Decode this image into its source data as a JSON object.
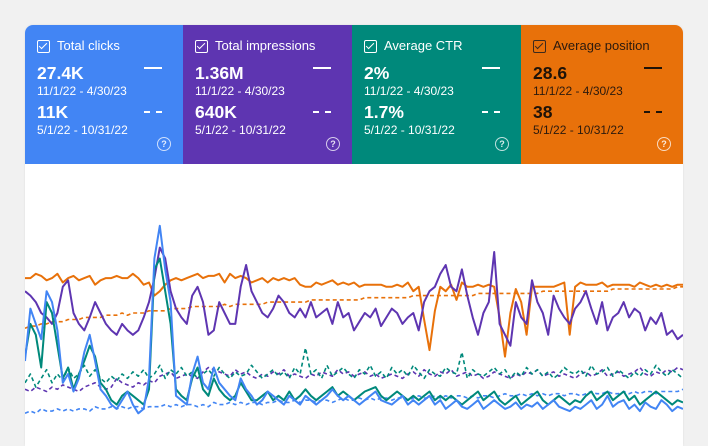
{
  "metrics": [
    {
      "id": "clicks",
      "title": "Total clicks",
      "color": "#4285f4",
      "current_value": "27.4K",
      "current_range": "11/1/22 - 4/30/23",
      "previous_value": "11K",
      "previous_range": "5/1/22 - 10/31/22",
      "checked": true
    },
    {
      "id": "impressions",
      "title": "Total impressions",
      "color": "#5e35b1",
      "current_value": "1.36M",
      "current_range": "11/1/22 - 4/30/23",
      "previous_value": "640K",
      "previous_range": "5/1/22 - 10/31/22",
      "checked": true
    },
    {
      "id": "ctr",
      "title": "Average CTR",
      "color": "#00897b",
      "current_value": "2%",
      "current_range": "11/1/22 - 4/30/23",
      "previous_value": "1.7%",
      "previous_range": "5/1/22 - 10/31/22",
      "checked": true
    },
    {
      "id": "position",
      "title": "Average position",
      "color": "#e8710a",
      "current_value": "28.6",
      "current_range": "11/1/22 - 4/30/23",
      "previous_value": "38",
      "previous_range": "5/1/22 - 10/31/22",
      "checked": true
    }
  ],
  "help_icon": "help-circle-icon",
  "chart_data": {
    "type": "line",
    "title": "",
    "xlabel": "",
    "ylabel": "",
    "grid": false,
    "legend": "none",
    "ylim": [
      0,
      100
    ],
    "series": [
      {
        "id": "position-current",
        "color": "#e8710a",
        "style": "solid",
        "values": [
          66,
          66,
          68,
          67,
          65,
          66,
          68,
          64,
          66,
          67,
          65,
          66,
          67,
          63,
          65,
          66,
          66,
          67,
          66,
          66,
          68,
          66,
          63,
          64,
          58,
          60,
          63,
          65,
          66,
          65,
          66,
          67,
          68,
          66,
          67,
          67,
          68,
          64,
          68,
          66,
          67,
          66,
          64,
          65,
          66,
          64,
          66,
          65,
          66,
          65,
          66,
          63,
          62,
          62,
          64,
          63,
          64,
          65,
          63,
          64,
          63,
          64,
          62,
          63,
          63,
          63,
          63,
          62,
          62,
          63,
          62,
          64,
          60,
          62,
          47,
          33,
          51,
          62,
          60,
          63,
          56,
          64,
          62,
          62,
          63,
          62,
          63,
          62,
          48,
          30,
          50,
          61,
          55,
          40,
          62,
          62,
          62,
          62,
          62,
          63,
          64,
          40,
          62,
          64,
          63,
          63,
          63,
          64,
          62,
          63,
          63,
          63,
          63,
          62,
          64,
          63,
          62,
          63,
          62,
          63,
          62,
          63,
          63
        ]
      },
      {
        "id": "position-previous",
        "color": "#e8710a",
        "style": "dashed",
        "values": [
          43,
          44,
          44,
          45,
          45,
          46,
          46,
          46,
          47,
          47,
          47,
          48,
          48,
          48,
          48,
          49,
          49,
          49,
          50,
          49,
          50,
          50,
          50,
          51,
          51,
          51,
          51,
          52,
          52,
          52,
          52,
          53,
          53,
          53,
          53,
          53,
          53,
          54,
          53,
          54,
          54,
          54,
          54,
          54,
          54,
          55,
          55,
          55,
          55,
          55,
          55,
          55,
          55,
          56,
          56,
          56,
          56,
          56,
          56,
          56,
          56,
          56,
          56,
          57,
          57,
          57,
          57,
          57,
          57,
          57,
          57,
          57,
          58,
          58,
          58,
          58,
          58,
          58,
          58,
          58,
          58,
          58,
          58,
          58,
          59,
          59,
          59,
          59,
          59,
          59,
          59,
          59,
          59,
          59,
          59,
          59,
          60,
          60,
          60,
          60,
          60,
          60,
          60,
          60,
          60,
          60,
          60,
          60,
          60,
          61,
          61,
          61,
          61,
          61,
          61,
          61,
          61,
          61,
          61,
          61,
          61,
          62,
          62
        ]
      },
      {
        "id": "impressions-current",
        "color": "#5e35b1",
        "style": "solid",
        "values": [
          60,
          58,
          55,
          50,
          48,
          45,
          50,
          62,
          65,
          50,
          45,
          42,
          48,
          55,
          50,
          45,
          42,
          40,
          45,
          42,
          40,
          42,
          48,
          55,
          66,
          80,
          75,
          60,
          52,
          48,
          45,
          58,
          62,
          55,
          40,
          42,
          55,
          50,
          45,
          45,
          62,
          72,
          60,
          55,
          50,
          48,
          52,
          58,
          55,
          50,
          48,
          52,
          48,
          55,
          48,
          50,
          52,
          45,
          55,
          48,
          50,
          42,
          46,
          50,
          48,
          52,
          44,
          48,
          52,
          50,
          45,
          48,
          50,
          42,
          55,
          60,
          62,
          68,
          72,
          62,
          60,
          70,
          58,
          48,
          40,
          50,
          55,
          78,
          45,
          40,
          35,
          55,
          48,
          45,
          65,
          55,
          50,
          40,
          58,
          52,
          48,
          45,
          52,
          55,
          60,
          52,
          45,
          55,
          42,
          48,
          50,
          55,
          48,
          52,
          50,
          42,
          48,
          45,
          50,
          40,
          42,
          38,
          40
        ]
      },
      {
        "id": "impressions-previous",
        "color": "#5e35b1",
        "style": "dashed",
        "values": [
          15,
          14,
          16,
          15,
          14,
          16,
          15,
          17,
          16,
          15,
          14,
          16,
          17,
          18,
          16,
          15,
          16,
          20,
          18,
          17,
          16,
          18,
          17,
          19,
          18,
          21,
          22,
          23,
          20,
          21,
          22,
          21,
          20,
          23,
          25,
          24,
          23,
          22,
          21,
          24,
          22,
          23,
          21,
          20,
          22,
          21,
          23,
          22,
          24,
          21,
          22,
          21,
          20,
          22,
          21,
          23,
          22,
          21,
          24,
          22,
          23,
          21,
          22,
          23,
          21,
          22,
          20,
          21,
          22,
          21,
          20,
          22,
          23,
          21,
          24,
          22,
          21,
          23,
          22,
          24,
          21,
          22,
          23,
          21,
          22,
          20,
          21,
          23,
          22,
          21,
          20,
          22,
          21,
          23,
          22,
          24,
          21,
          22,
          23,
          21,
          22,
          21,
          20,
          22,
          23,
          21,
          22,
          24,
          21,
          22,
          23,
          21,
          22,
          23,
          25,
          22,
          21,
          23,
          22,
          24,
          23,
          25,
          24
        ]
      },
      {
        "id": "clicks-current",
        "color": "#4285f4",
        "style": "solid",
        "values": [
          28,
          52,
          45,
          38,
          60,
          55,
          42,
          18,
          22,
          14,
          20,
          32,
          40,
          28,
          15,
          12,
          8,
          6,
          10,
          14,
          8,
          4,
          6,
          20,
          75,
          90,
          70,
          55,
          12,
          10,
          8,
          22,
          30,
          18,
          15,
          25,
          18,
          15,
          12,
          10,
          20,
          15,
          12,
          8,
          10,
          14,
          12,
          10,
          8,
          12,
          10,
          8,
          12,
          10,
          8,
          10,
          12,
          15,
          12,
          10,
          12,
          10,
          8,
          10,
          12,
          14,
          10,
          9,
          8,
          10,
          12,
          8,
          10,
          8,
          10,
          12,
          8,
          10,
          6,
          8,
          10,
          7,
          6,
          8,
          10,
          6,
          8,
          10,
          8,
          6,
          7,
          9,
          6,
          8,
          7,
          9,
          6,
          8,
          10,
          7,
          6,
          5,
          7,
          6,
          8,
          10,
          6,
          8,
          12,
          7,
          9,
          10,
          6,
          8,
          5,
          9,
          7,
          6,
          10,
          8,
          5,
          7,
          6
        ]
      },
      {
        "id": "clicks-previous",
        "color": "#4285f4",
        "style": "dashed",
        "values": [
          4,
          5,
          4,
          6,
          5,
          5,
          6,
          5,
          6,
          5,
          6,
          6,
          5,
          7,
          6,
          6,
          7,
          6,
          7,
          6,
          7,
          7,
          6,
          7,
          7,
          7,
          8,
          7,
          8,
          7,
          8,
          8,
          7,
          8,
          7,
          9,
          8,
          8,
          9,
          8,
          9,
          8,
          9,
          9,
          8,
          9,
          9,
          10,
          9,
          9,
          10,
          9,
          10,
          10,
          9,
          10,
          10,
          9,
          10,
          11,
          10,
          10,
          11,
          10,
          11,
          10,
          11,
          11,
          10,
          11,
          11,
          10,
          11,
          12,
          11,
          11,
          12,
          11,
          12,
          11,
          12,
          12,
          11,
          12,
          11,
          12,
          12,
          11,
          12,
          13,
          12,
          12,
          13,
          12,
          13,
          12,
          13,
          12,
          13,
          13,
          12,
          13,
          13,
          12,
          13,
          14,
          13,
          13,
          14,
          13,
          13,
          14,
          13,
          14,
          13,
          14,
          14,
          13,
          14,
          14,
          14,
          14,
          15
        ]
      },
      {
        "id": "ctr-current",
        "color": "#00897b",
        "style": "solid",
        "values": [
          30,
          45,
          40,
          25,
          55,
          50,
          35,
          20,
          25,
          15,
          22,
          28,
          35,
          30,
          18,
          15,
          10,
          8,
          12,
          14,
          12,
          10,
          8,
          15,
          70,
          75,
          60,
          45,
          15,
          12,
          10,
          20,
          25,
          15,
          12,
          20,
          15,
          12,
          10,
          12,
          18,
          14,
          10,
          10,
          12,
          14,
          10,
          12,
          10,
          14,
          10,
          12,
          15,
          12,
          10,
          12,
          14,
          16,
          12,
          14,
          12,
          10,
          12,
          14,
          15,
          16,
          12,
          10,
          12,
          14,
          12,
          10,
          12,
          10,
          12,
          14,
          10,
          12,
          10,
          12,
          10,
          8,
          10,
          12,
          14,
          10,
          12,
          14,
          10,
          8,
          10,
          12,
          8,
          10,
          12,
          14,
          10,
          8,
          10,
          12,
          10,
          8,
          10,
          9,
          12,
          14,
          10,
          12,
          14,
          10,
          12,
          14,
          10,
          12,
          8,
          10,
          12,
          14,
          12,
          10,
          8,
          10,
          9
        ]
      },
      {
        "id": "ctr-previous",
        "color": "#00897b",
        "style": "dashed",
        "values": [
          18,
          22,
          16,
          20,
          24,
          18,
          22,
          19,
          25,
          20,
          22,
          26,
          21,
          24,
          20,
          18,
          21,
          19,
          22,
          20,
          23,
          21,
          24,
          20,
          22,
          26,
          20,
          24,
          22,
          25,
          21,
          23,
          20,
          22,
          24,
          21,
          25,
          22,
          20,
          23,
          21,
          22,
          26,
          23,
          20,
          22,
          24,
          21,
          23,
          20,
          25,
          22,
          34,
          22,
          24,
          20,
          26,
          21,
          23,
          25,
          22,
          20,
          24,
          22,
          26,
          21,
          23,
          20,
          25,
          22,
          24,
          21,
          26,
          23,
          20,
          24,
          22,
          21,
          25,
          23,
          22,
          32,
          20,
          24,
          22,
          21,
          23,
          25,
          22,
          24,
          20,
          23,
          21,
          25,
          22,
          24,
          21,
          23,
          20,
          22,
          25,
          23,
          22,
          24,
          21,
          26,
          22,
          23,
          25,
          21,
          24,
          22,
          20,
          23,
          21,
          24,
          22,
          26,
          23,
          21,
          24,
          22,
          20
        ]
      }
    ]
  }
}
